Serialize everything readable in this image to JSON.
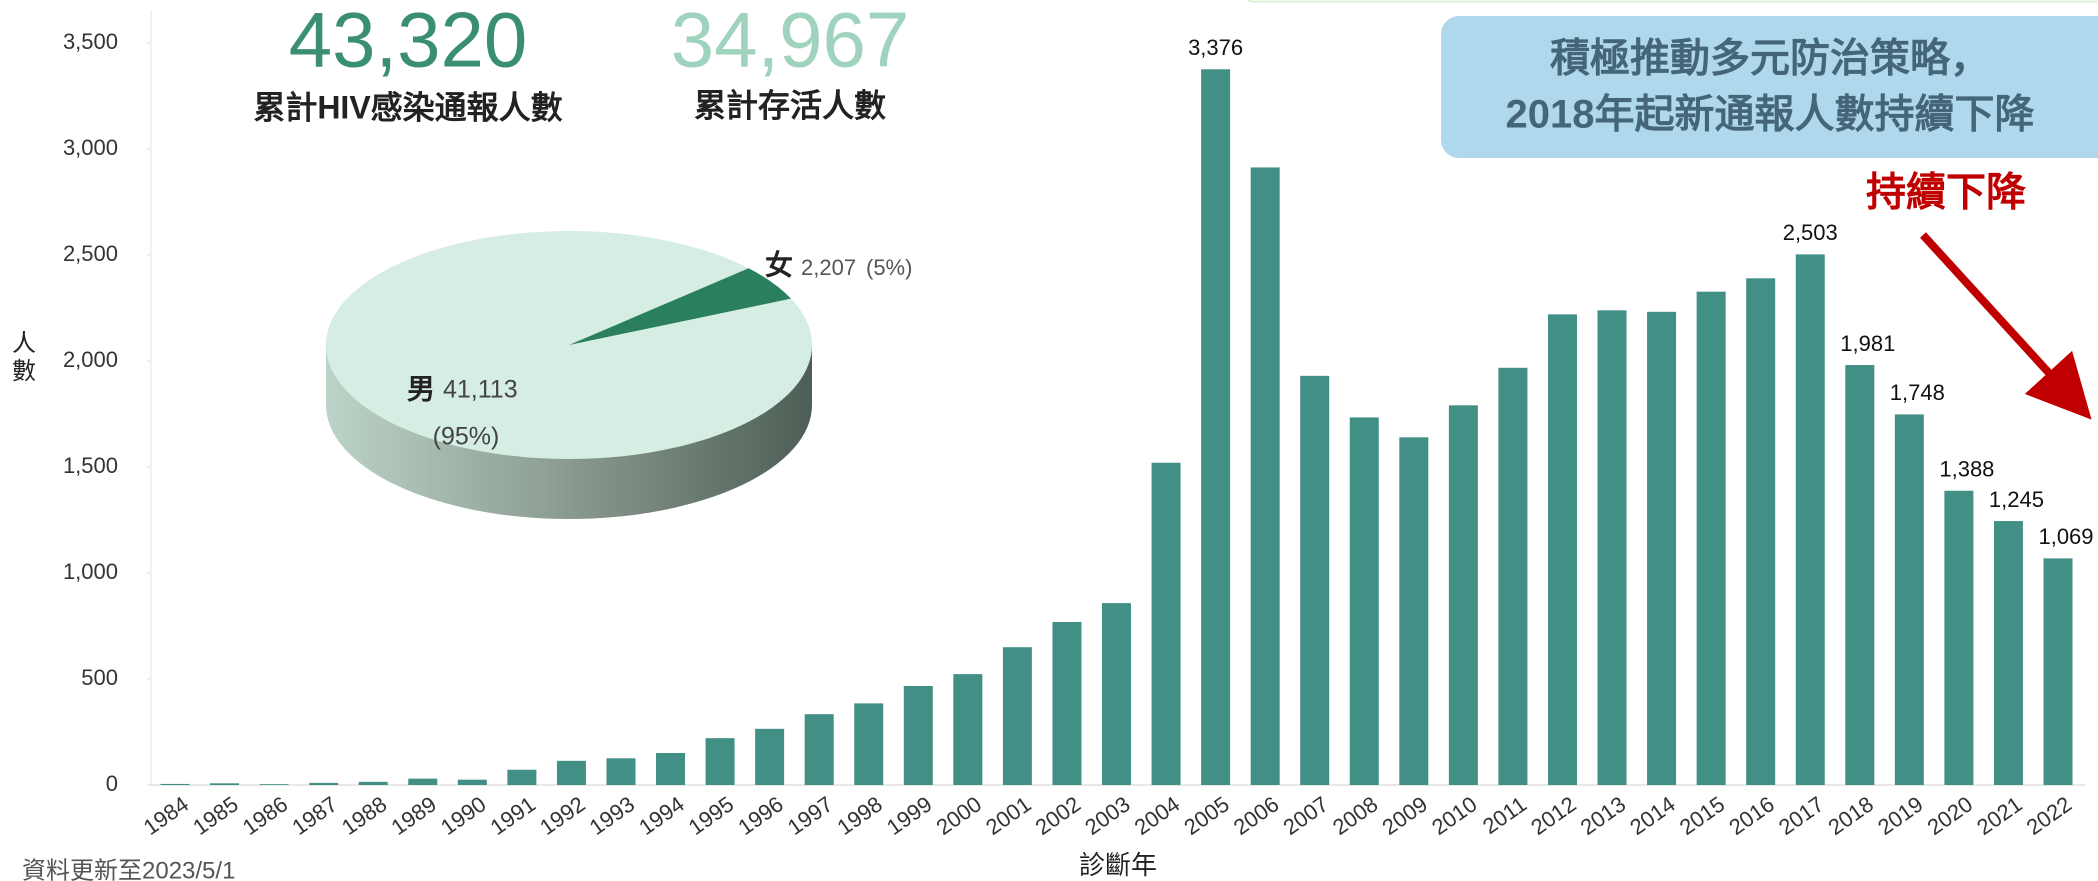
{
  "chart_data": [
    {
      "type": "bar",
      "y_label": "人數",
      "x_label": "診斷年",
      "categories": [
        "1984",
        "1985",
        "1986",
        "1987",
        "1988",
        "1989",
        "1990",
        "1991",
        "1992",
        "1993",
        "1994",
        "1995",
        "1996",
        "1997",
        "1998",
        "1999",
        "2000",
        "2001",
        "2002",
        "2003",
        "2004",
        "2005",
        "2006",
        "2007",
        "2008",
        "2009",
        "2010",
        "2011",
        "2012",
        "2013",
        "2014",
        "2015",
        "2016",
        "2017",
        "2018",
        "2019",
        "2020",
        "2021",
        "2022"
      ],
      "values": [
        5,
        8,
        4,
        10,
        15,
        30,
        25,
        72,
        114,
        126,
        151,
        221,
        265,
        334,
        385,
        467,
        523,
        650,
        769,
        858,
        1520,
        3376,
        2913,
        1930,
        1734,
        1640,
        1791,
        1968,
        2220,
        2239,
        2232,
        2327,
        2390,
        2503,
        1981,
        1748,
        1388,
        1245,
        1069
      ],
      "value_labels": [
        null,
        null,
        null,
        null,
        null,
        null,
        null,
        null,
        null,
        null,
        null,
        null,
        null,
        null,
        null,
        null,
        null,
        null,
        null,
        null,
        null,
        "3,376",
        null,
        null,
        null,
        null,
        null,
        null,
        null,
        null,
        null,
        null,
        null,
        "2,503",
        "1,981",
        "1,748",
        "1,388",
        "1,245",
        "1,069"
      ],
      "color": "#428f86",
      "ylim": [
        0,
        3500
      ],
      "yticks": [
        0,
        500,
        {
          "value": 1000,
          "label": "1,000"
        },
        {
          "value": 1500,
          "label": "1,500"
        },
        {
          "value": 2000,
          "label": "2,000"
        },
        {
          "value": 2500,
          "label": "2,500"
        },
        {
          "value": 3000,
          "label": "3,000"
        },
        {
          "value": 3500,
          "label": "3,500"
        }
      ],
      "grid": false
    },
    {
      "type": "pie",
      "categories": [
        "男",
        "女"
      ],
      "values": [
        41113,
        2207
      ],
      "value_labels": [
        "41,113",
        "2,207"
      ],
      "percents": [
        95,
        5
      ],
      "percent_labels": [
        "(95%)",
        "(5%)"
      ],
      "colors": [
        "#d5ede2",
        "#2a7f5e"
      ]
    }
  ],
  "stats": [
    {
      "number": "43,320",
      "label": "累計HIV感染通報人數"
    },
    {
      "number": "34,967",
      "label": "累計存活人數"
    }
  ],
  "callout": {
    "lines": [
      "積極推動多元防治策略，",
      "2018年起新通報人數持續下降"
    ],
    "trend": "持續下降"
  },
  "footnote": "資料更新至2023/5/1"
}
